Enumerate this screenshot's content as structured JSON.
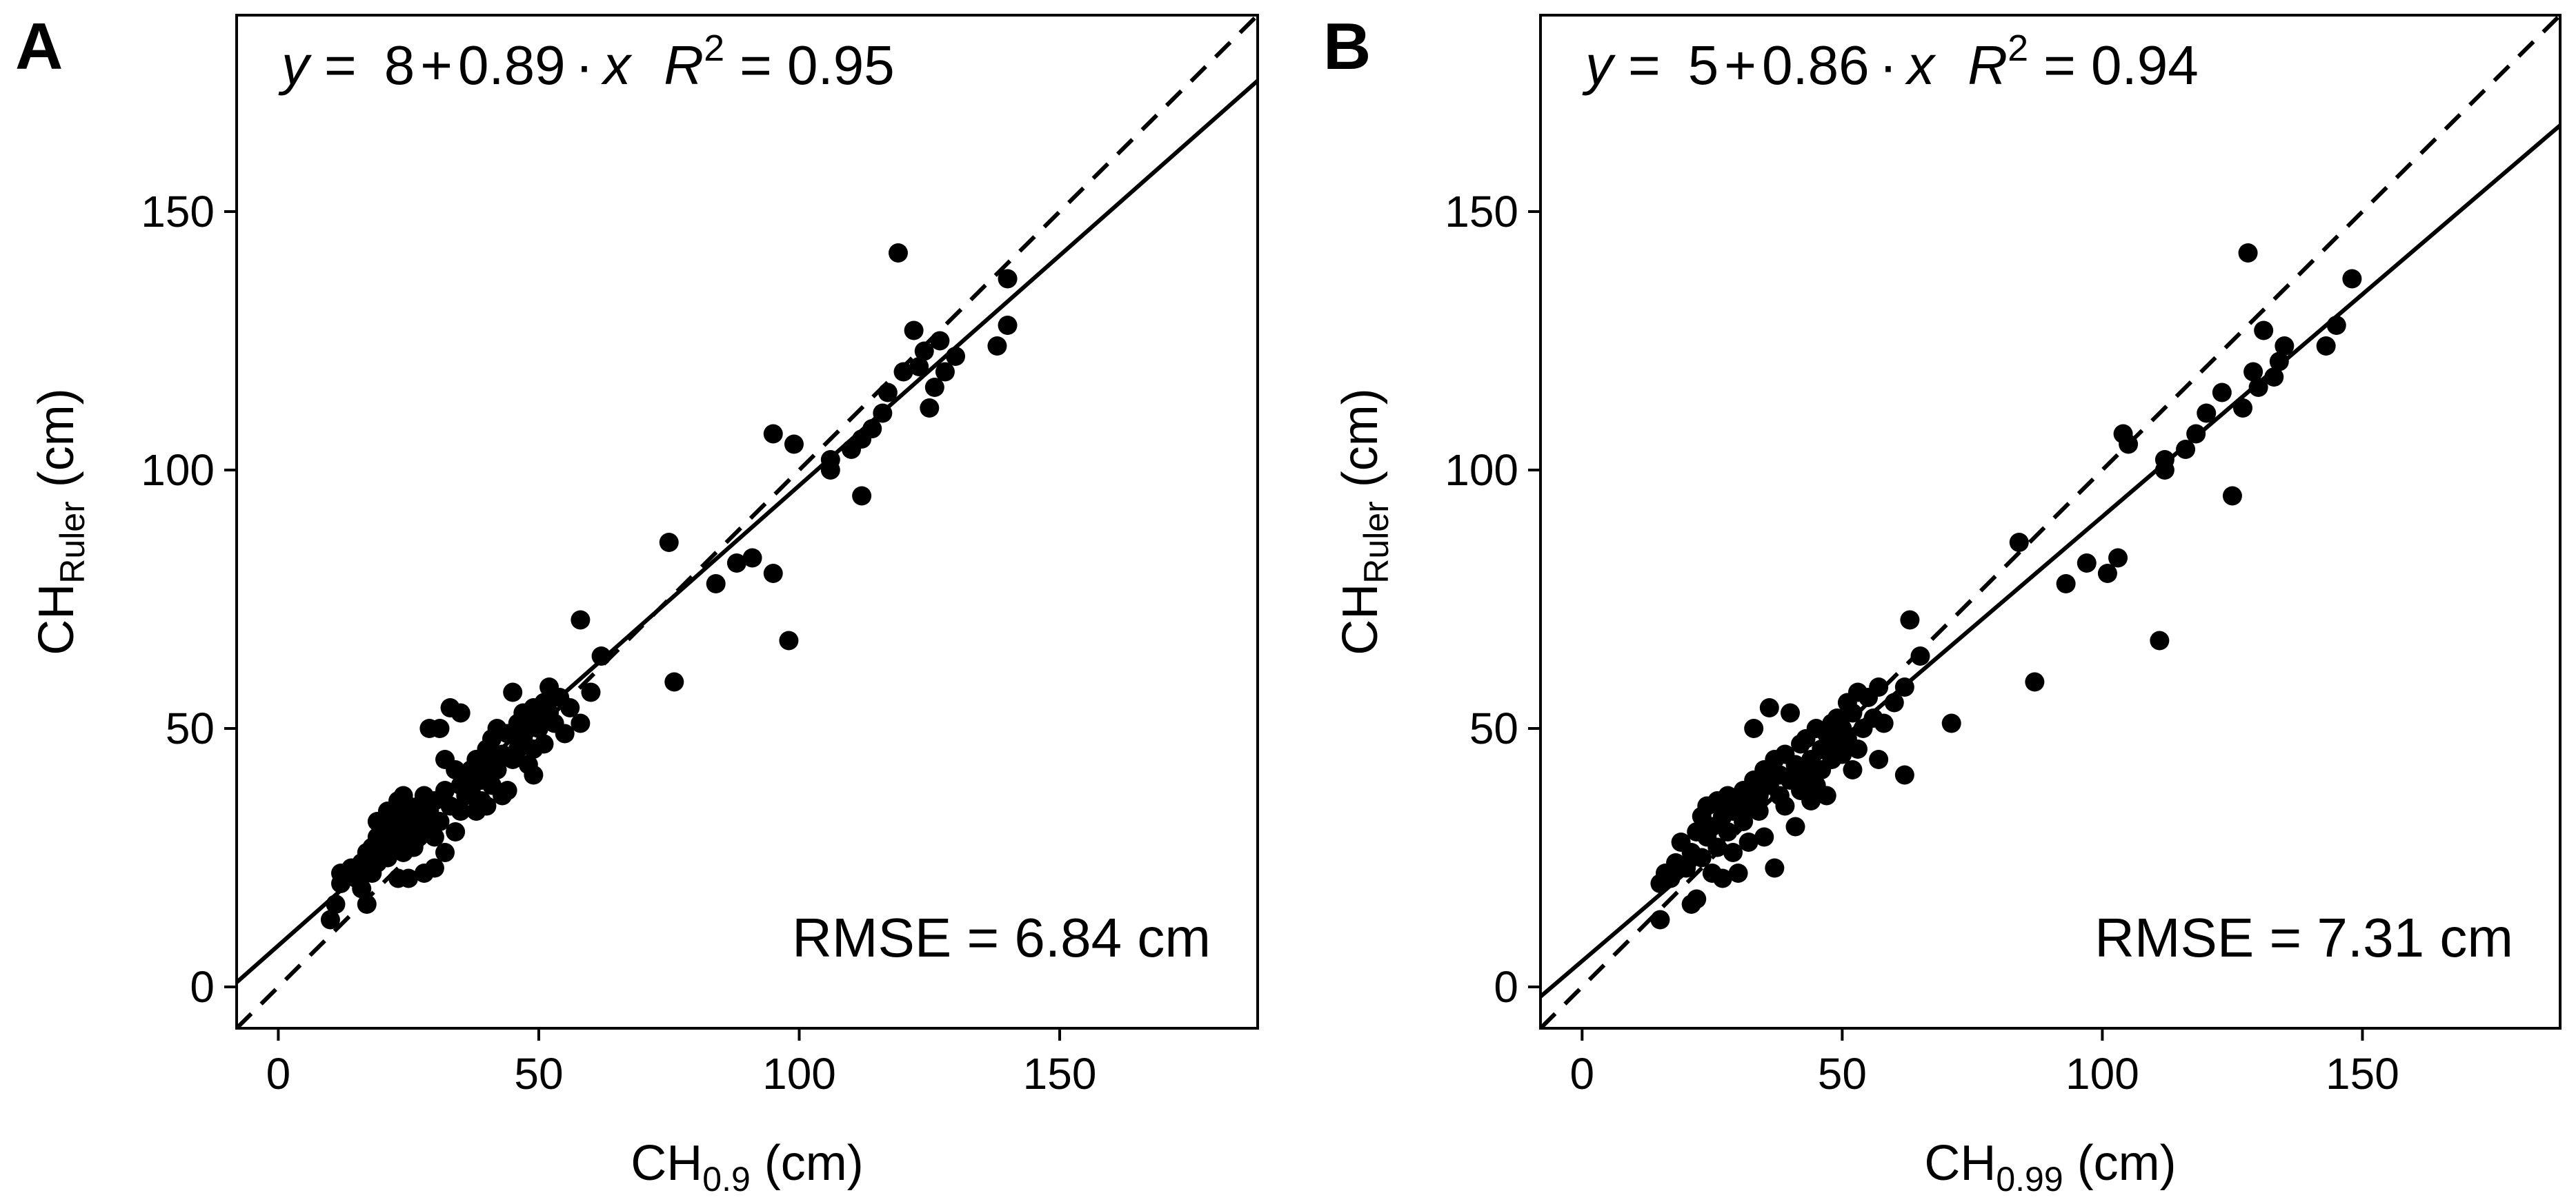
{
  "figure": {
    "background": "#ffffff",
    "ink": "#000000"
  },
  "chart_data": [
    {
      "type": "scatter",
      "panel_label": "A",
      "equation": {
        "y": "y",
        "eq": "=",
        "intercept": "8",
        "plus": "+",
        "slope": "0.89",
        "dot": "·",
        "x": "x",
        "r": "R",
        "r_sup": "2",
        "r2_text": "= 0.95"
      },
      "rmse_label": "RMSE = 6.84 cm",
      "xlabel": {
        "main": "CH",
        "sub": "0.9",
        "unit": " (cm)"
      },
      "ylabel": {
        "main": "CH",
        "sub": "Ruler",
        "unit": " (cm)"
      },
      "xlim": [
        -8,
        188
      ],
      "ylim": [
        -8,
        188
      ],
      "xticks": [
        0,
        50,
        100,
        150
      ],
      "yticks": [
        0,
        50,
        100,
        150
      ],
      "fit": {
        "intercept": 8,
        "slope": 0.89,
        "style": "solid"
      },
      "reference": {
        "intercept": 0,
        "slope": 1,
        "style": "dashed"
      },
      "points": [
        [
          10,
          13
        ],
        [
          11,
          16
        ],
        [
          12,
          20
        ],
        [
          12,
          22
        ],
        [
          13,
          22
        ],
        [
          14,
          23
        ],
        [
          15,
          21
        ],
        [
          16,
          19
        ],
        [
          16,
          24
        ],
        [
          17,
          16
        ],
        [
          17,
          26
        ],
        [
          18,
          22
        ],
        [
          18,
          27
        ],
        [
          19,
          24
        ],
        [
          19,
          29
        ],
        [
          19,
          32
        ],
        [
          20,
          28
        ],
        [
          20,
          31
        ],
        [
          21,
          25
        ],
        [
          21,
          34
        ],
        [
          22,
          30
        ],
        [
          22,
          33
        ],
        [
          23,
          21
        ],
        [
          23,
          28
        ],
        [
          23,
          36
        ],
        [
          24,
          26
        ],
        [
          24,
          32
        ],
        [
          24,
          37
        ],
        [
          25,
          21
        ],
        [
          25,
          30
        ],
        [
          25,
          35
        ],
        [
          26,
          33
        ],
        [
          26,
          27
        ],
        [
          27,
          29
        ],
        [
          27,
          35
        ],
        [
          28,
          22
        ],
        [
          28,
          31
        ],
        [
          28,
          37
        ],
        [
          29,
          34
        ],
        [
          29,
          50
        ],
        [
          30,
          23
        ],
        [
          30,
          29
        ],
        [
          30,
          36
        ],
        [
          31,
          32
        ],
        [
          31,
          50
        ],
        [
          32,
          26
        ],
        [
          32,
          38
        ],
        [
          32,
          44
        ],
        [
          33,
          35
        ],
        [
          33,
          54
        ],
        [
          34,
          42
        ],
        [
          34,
          30
        ],
        [
          35,
          34
        ],
        [
          35,
          39
        ],
        [
          35,
          53
        ],
        [
          36,
          41
        ],
        [
          36,
          37
        ],
        [
          37,
          42
        ],
        [
          37,
          38
        ],
        [
          38,
          44
        ],
        [
          38,
          34
        ],
        [
          39,
          40
        ],
        [
          39,
          36
        ],
        [
          40,
          46
        ],
        [
          40,
          43
        ],
        [
          40,
          35
        ],
        [
          41,
          39
        ],
        [
          41,
          48
        ],
        [
          42,
          42
        ],
        [
          42,
          50
        ],
        [
          43,
          37
        ],
        [
          43,
          45
        ],
        [
          44,
          49
        ],
        [
          44,
          38
        ],
        [
          45,
          57
        ],
        [
          45,
          44
        ],
        [
          46,
          51
        ],
        [
          46,
          46
        ],
        [
          47,
          48
        ],
        [
          47,
          53
        ],
        [
          48,
          50
        ],
        [
          48,
          43
        ],
        [
          49,
          41
        ],
        [
          49,
          46
        ],
        [
          49,
          54
        ],
        [
          50,
          50
        ],
        [
          50,
          52
        ],
        [
          51,
          55
        ],
        [
          51,
          47
        ],
        [
          52,
          53
        ],
        [
          52,
          58
        ],
        [
          53,
          51
        ],
        [
          54,
          56
        ],
        [
          55,
          49
        ],
        [
          56,
          54
        ],
        [
          58,
          51
        ],
        [
          58,
          71
        ],
        [
          60,
          57
        ],
        [
          62,
          64
        ],
        [
          75,
          86
        ],
        [
          76,
          59
        ],
        [
          84,
          78
        ],
        [
          88,
          82
        ],
        [
          91,
          83
        ],
        [
          95,
          80
        ],
        [
          95,
          107
        ],
        [
          98,
          67
        ],
        [
          99,
          105
        ],
        [
          106,
          100
        ],
        [
          106,
          102
        ],
        [
          110,
          104
        ],
        [
          112,
          95
        ],
        [
          112,
          106
        ],
        [
          114,
          108
        ],
        [
          116,
          111
        ],
        [
          117,
          115
        ],
        [
          119,
          142
        ],
        [
          120,
          119
        ],
        [
          122,
          127
        ],
        [
          123,
          120
        ],
        [
          124,
          123
        ],
        [
          125,
          112
        ],
        [
          126,
          116
        ],
        [
          127,
          125
        ],
        [
          128,
          119
        ],
        [
          130,
          122
        ],
        [
          138,
          124
        ],
        [
          140,
          128
        ],
        [
          140,
          137
        ]
      ]
    },
    {
      "type": "scatter",
      "panel_label": "B",
      "equation": {
        "y": "y",
        "eq": "=",
        "intercept": "5",
        "plus": "+",
        "slope": "0.86",
        "dot": "·",
        "x": "x",
        "r": "R",
        "r_sup": "2",
        "r2_text": "= 0.94"
      },
      "rmse_label": "RMSE = 7.31 cm",
      "xlabel": {
        "main": "CH",
        "sub": "0.99",
        "unit": " (cm)"
      },
      "ylabel": {
        "main": "CH",
        "sub": "Ruler",
        "unit": " (cm)"
      },
      "xlim": [
        -8,
        188
      ],
      "ylim": [
        -8,
        188
      ],
      "xticks": [
        0,
        50,
        100,
        150
      ],
      "yticks": [
        0,
        50,
        100,
        150
      ],
      "fit": {
        "intercept": 5,
        "slope": 0.86,
        "style": "solid"
      },
      "reference": {
        "intercept": 0,
        "slope": 1,
        "style": "dashed"
      },
      "points": [
        [
          15,
          13
        ],
        [
          15,
          20
        ],
        [
          16,
          22
        ],
        [
          17,
          21
        ],
        [
          18,
          24
        ],
        [
          19,
          28
        ],
        [
          20,
          23
        ],
        [
          21,
          16
        ],
        [
          21,
          26
        ],
        [
          22,
          30
        ],
        [
          22,
          17
        ],
        [
          23,
          33
        ],
        [
          23,
          25
        ],
        [
          24,
          29
        ],
        [
          24,
          35
        ],
        [
          25,
          31
        ],
        [
          25,
          22
        ],
        [
          26,
          36
        ],
        [
          26,
          27
        ],
        [
          27,
          33
        ],
        [
          27,
          21
        ],
        [
          28,
          30
        ],
        [
          28,
          37
        ],
        [
          29,
          34
        ],
        [
          29,
          26
        ],
        [
          30,
          36
        ],
        [
          30,
          22
        ],
        [
          31,
          32
        ],
        [
          31,
          38
        ],
        [
          32,
          35
        ],
        [
          32,
          28
        ],
        [
          33,
          40
        ],
        [
          33,
          50
        ],
        [
          34,
          34
        ],
        [
          34,
          37
        ],
        [
          35,
          42
        ],
        [
          35,
          29
        ],
        [
          36,
          39
        ],
        [
          36,
          54
        ],
        [
          37,
          44
        ],
        [
          37,
          23
        ],
        [
          38,
          37
        ],
        [
          38,
          41
        ],
        [
          39,
          45
        ],
        [
          39,
          35
        ],
        [
          40,
          53
        ],
        [
          40,
          40
        ],
        [
          41,
          31
        ],
        [
          41,
          43
        ],
        [
          42,
          47
        ],
        [
          42,
          38
        ],
        [
          43,
          41
        ],
        [
          43,
          48
        ],
        [
          44,
          36
        ],
        [
          44,
          44
        ],
        [
          45,
          50
        ],
        [
          45,
          39
        ],
        [
          46,
          42
        ],
        [
          46,
          46
        ],
        [
          47,
          49
        ],
        [
          47,
          37
        ],
        [
          48,
          44
        ],
        [
          48,
          51
        ],
        [
          49,
          47
        ],
        [
          49,
          52
        ],
        [
          50,
          45
        ],
        [
          50,
          50
        ],
        [
          51,
          55
        ],
        [
          51,
          48
        ],
        [
          52,
          42
        ],
        [
          52,
          53
        ],
        [
          53,
          57
        ],
        [
          53,
          46
        ],
        [
          54,
          50
        ],
        [
          55,
          56
        ],
        [
          56,
          52
        ],
        [
          57,
          58
        ],
        [
          57,
          44
        ],
        [
          58,
          51
        ],
        [
          60,
          55
        ],
        [
          62,
          41
        ],
        [
          62,
          58
        ],
        [
          63,
          71
        ],
        [
          65,
          64
        ],
        [
          71,
          51
        ],
        [
          84,
          86
        ],
        [
          87,
          59
        ],
        [
          93,
          78
        ],
        [
          97,
          82
        ],
        [
          101,
          80
        ],
        [
          103,
          83
        ],
        [
          104,
          107
        ],
        [
          105,
          105
        ],
        [
          111,
          67
        ],
        [
          112,
          100
        ],
        [
          112,
          102
        ],
        [
          116,
          104
        ],
        [
          118,
          107
        ],
        [
          120,
          111
        ],
        [
          123,
          115
        ],
        [
          125,
          95
        ],
        [
          127,
          112
        ],
        [
          128,
          142
        ],
        [
          129,
          119
        ],
        [
          130,
          116
        ],
        [
          131,
          127
        ],
        [
          133,
          118
        ],
        [
          134,
          121
        ],
        [
          135,
          124
        ],
        [
          143,
          124
        ],
        [
          145,
          128
        ],
        [
          148,
          137
        ]
      ]
    }
  ]
}
